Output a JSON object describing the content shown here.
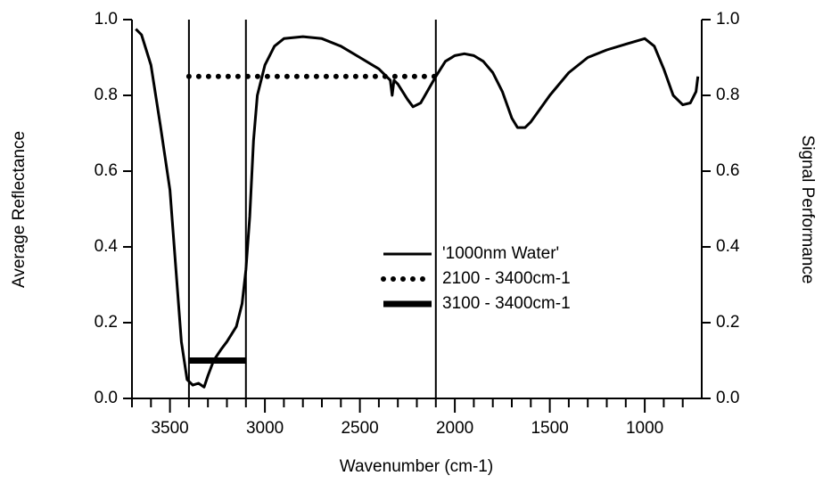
{
  "chart_data": {
    "type": "line",
    "xlabel": "Wavenumber (cm-1)",
    "ylabel": "Average Reflectance",
    "y2label": "Signal Performance",
    "xlim": [
      3700,
      700
    ],
    "xticks": [
      3500,
      3000,
      2500,
      2000,
      1500,
      1000
    ],
    "x_minor_ticks": [
      3700,
      3600,
      3400,
      3300,
      3200,
      3100,
      2900,
      2800,
      2700,
      2600,
      2400,
      2300,
      2200,
      2100,
      1900,
      1800,
      1700,
      1600,
      1400,
      1300,
      1200,
      1100,
      900,
      800
    ],
    "ylim": [
      0,
      1
    ],
    "yticks": [
      {
        "value": 0,
        "label": "0.0"
      },
      0.2,
      0.4,
      0.6,
      0.8,
      {
        "value": 1,
        "label": "1.0"
      }
    ],
    "y2lim": [
      0,
      1
    ],
    "y2ticks": [
      {
        "value": 0,
        "label": "0.0"
      },
      0.2,
      0.4,
      0.6,
      0.8,
      {
        "value": 1,
        "label": "1.0"
      }
    ],
    "vlines": [
      3400,
      3100,
      2100
    ],
    "legend": "right",
    "series": [
      {
        "name": "'1000nm Water'",
        "color": "#000000",
        "style": "solid",
        "x": [
          3680,
          3650,
          3600,
          3550,
          3500,
          3470,
          3440,
          3410,
          3380,
          3350,
          3320,
          3300,
          3270,
          3230,
          3200,
          3150,
          3120,
          3100,
          3080,
          3060,
          3040,
          3000,
          2950,
          2900,
          2800,
          2700,
          2600,
          2500,
          2400,
          2340,
          2330,
          2320,
          2300,
          2250,
          2220,
          2180,
          2100,
          2050,
          2000,
          1950,
          1900,
          1850,
          1800,
          1750,
          1700,
          1670,
          1630,
          1600,
          1500,
          1400,
          1300,
          1200,
          1100,
          1000,
          950,
          900,
          850,
          800,
          760,
          730,
          720
        ],
        "values": [
          0.975,
          0.96,
          0.88,
          0.72,
          0.55,
          0.35,
          0.15,
          0.05,
          0.035,
          0.04,
          0.03,
          0.06,
          0.1,
          0.13,
          0.15,
          0.19,
          0.25,
          0.34,
          0.48,
          0.68,
          0.8,
          0.88,
          0.93,
          0.95,
          0.955,
          0.95,
          0.93,
          0.9,
          0.87,
          0.84,
          0.8,
          0.84,
          0.83,
          0.79,
          0.77,
          0.78,
          0.85,
          0.89,
          0.905,
          0.91,
          0.905,
          0.89,
          0.86,
          0.81,
          0.74,
          0.715,
          0.715,
          0.73,
          0.8,
          0.86,
          0.9,
          0.92,
          0.935,
          0.95,
          0.93,
          0.87,
          0.8,
          0.775,
          0.78,
          0.81,
          0.85
        ]
      },
      {
        "name": "2100 - 3400cm-1",
        "color": "#000000",
        "style": "dotted",
        "axis": "y2",
        "x": [
          3400,
          2100
        ],
        "values": [
          0.85,
          0.85
        ]
      },
      {
        "name": "3100 - 3400cm-1",
        "color": "#000000",
        "style": "thick",
        "axis": "y2",
        "x": [
          3400,
          3100
        ],
        "values": [
          0.1,
          0.1
        ]
      }
    ]
  }
}
